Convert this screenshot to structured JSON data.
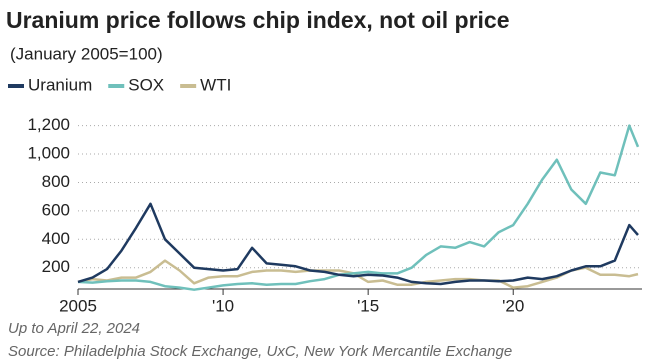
{
  "chart_data": {
    "type": "line",
    "title": "Uranium price follows chip index, not oil price",
    "subtitle": "(January 2005=100)",
    "notes": [
      "Up to April 22, 2024",
      "Source: Philadelphia Stock Exchange, UxC, New York Mercantile Exchange"
    ],
    "x": [
      2005,
      2005.5,
      2006,
      2006.5,
      2007,
      2007.5,
      2008,
      2008.5,
      2009,
      2009.5,
      2010,
      2010.5,
      2011,
      2011.5,
      2012,
      2012.5,
      2013,
      2013.5,
      2014,
      2014.5,
      2015,
      2015.5,
      2016,
      2016.5,
      2017,
      2017.5,
      2018,
      2018.5,
      2019,
      2019.5,
      2020,
      2020.5,
      2021,
      2021.5,
      2022,
      2022.5,
      2023,
      2023.5,
      2024,
      2024.3
    ],
    "series": [
      {
        "name": "Uranium",
        "color": "#1f3a60",
        "values": [
          100,
          130,
          190,
          320,
          480,
          650,
          400,
          300,
          200,
          190,
          180,
          190,
          340,
          230,
          220,
          210,
          180,
          170,
          150,
          140,
          150,
          145,
          130,
          100,
          90,
          85,
          100,
          110,
          110,
          105,
          110,
          130,
          120,
          140,
          180,
          210,
          210,
          250,
          500,
          430
        ]
      },
      {
        "name": "SOX",
        "color": "#6fc0bb",
        "values": [
          100,
          95,
          105,
          110,
          110,
          100,
          70,
          60,
          45,
          60,
          75,
          85,
          90,
          80,
          85,
          85,
          105,
          120,
          150,
          160,
          170,
          160,
          160,
          200,
          290,
          350,
          340,
          380,
          350,
          450,
          500,
          650,
          820,
          960,
          750,
          650,
          870,
          850,
          1200,
          1050
        ]
      },
      {
        "name": "WTI",
        "color": "#c9bd92",
        "values": [
          100,
          120,
          110,
          130,
          130,
          170,
          250,
          180,
          90,
          130,
          140,
          140,
          170,
          180,
          180,
          170,
          180,
          180,
          180,
          160,
          100,
          110,
          80,
          80,
          100,
          110,
          120,
          120,
          110,
          110,
          60,
          70,
          100,
          130,
          180,
          200,
          150,
          150,
          140,
          155
        ]
      }
    ],
    "xlim": [
      2005,
      2024.3
    ],
    "xticks": [
      2005,
      {
        "value": 2010,
        "label": "'10"
      },
      {
        "value": 2015,
        "label": "'15"
      },
      {
        "value": 2020,
        "label": "'20"
      }
    ],
    "ylim": [
      50,
      1250
    ],
    "yticks": [
      200,
      400,
      600,
      800,
      {
        "value": 1000,
        "label": "1,000"
      },
      {
        "value": 1200,
        "label": "1,200"
      }
    ],
    "grid": true
  }
}
